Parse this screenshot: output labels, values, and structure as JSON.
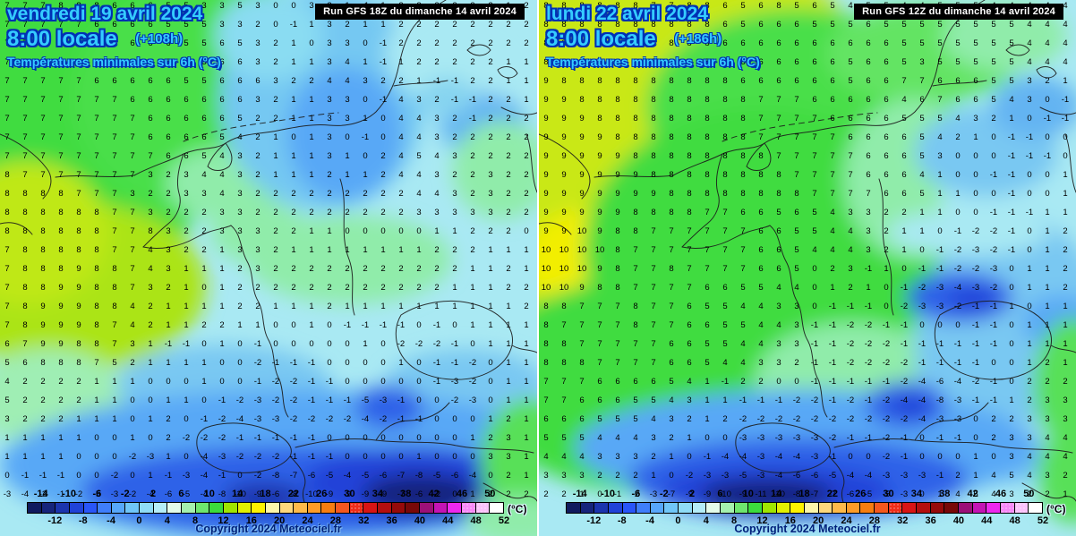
{
  "panels": [
    {
      "header": {
        "date": "vendredi 19 avril 2024",
        "time": "8:00 locale",
        "offset": "(+108h)",
        "subtitle": "Températures minimales sur 6h (°C)"
      },
      "run_label": "Run GFS 18Z du dimanche 14 avril 2024",
      "copyright": "Copyright 2024 Meteociel.fr",
      "grid_rows": [
        "7 7 7 8 8 8 6 6 6 5 5 3 3 5 3 0 0 3 2 1 -1 1 2 2 2 2 2 2 1 2",
        "7 7 7 7 7 6 6 6 6 5 5 5 3 3 2 0 -1 1 3 2 1 1 2 2 2 2 2 2 2 2",
        "7 7 7 7 7 6 6 6 6 6 5 5 6 5 3 2 1 0 3 3 0 -1 2 2 2 2 2 2 2 2",
        "7 7 7 7 7 7 6 6 6 6 5 5 6 6 3 2 1 1 3 4 1 -1 1 2 2 2 2 2 1 1",
        "7 7 7 7 7 6 6 6 6 6 5 5 6 6 6 3 2 2 4 4 3 2 2 1 -1 -1 2 2 1 1",
        "7 7 7 7 7 7 7 6 6 6 6 6 6 6 3 2 1 1 3 3 0 -1 4 3 2 -1 -1 2 2 1",
        "7 7 7 7 7 7 7 7 6 6 6 6 6 5 2 2 1 1 3 3 1 0 4 4 3 2 -1 2 2 2",
        "7 7 7 7 7 7 7 7 6 6 6 6 5 4 2 1 0 1 3 0 -1 0 4 4 3 2 2 2 2 2",
        "7 7 7 7 7 7 7 7 7 6 6 5 4 3 2 1 1 1 3 1 0 2 4 5 4 3 2 2 2 2",
        "8 7 7 7 7 7 7 7 3 2 3 4 4 3 2 1 1 1 2 1 1 2 4 4 3 2 2 3 2 2",
        "8 8 8 8 7 7 7 3 2 2 3 3 4 3 2 2 2 2 2 2 2 2 2 4 4 3 2 3 2 2",
        "8 8 8 8 8 8 7 7 3 2 2 2 3 3 2 2 2 2 2 2 2 2 2 3 3 3 3 3 2 2",
        "8 8 8 8 8 8 7 7 8 3 2 2 3 3 3 2 2 1 1 0 0 0 0 0 1 1 2 2 2 0",
        "7 8 8 8 8 8 7 7 4 3 2 2 1 3 3 2 1 1 1 1 1 1 1 1 2 2 2 1 1 1",
        "7 8 8 8 9 8 8 7 4 3 1 1 1 2 3 2 2 2 2 2 2 2 2 2 2 2 1 1 2 1",
        "7 8 8 9 9 8 8 7 3 2 1 0 1 2 2 2 2 2 2 2 2 2 2 2 2 1 1 1 2 2",
        "7 8 9 9 9 8 8 4 2 1 1 1 1 2 2 1 1 1 2 1 1 1 1 1 1 1 1 1 1 2",
        "7 8 9 9 9 8 7 4 2 1 1 2 2 1 1 0 0 1 0 -1 -1 -1 -1 0 -1 0 1 1 1 1",
        "6 7 9 9 8 8 7 3 1 -1 -1 0 1 0 -1 0 0 0 0 0 1 0 -2 -2 -2 -1 0 1 1 1",
        "5 6 8 8 8 7 5 2 1 1 1 1 0 0 -2 -1 -1 -1 0 0 0 0 1 0 -1 -1 -2 0 1 1",
        "4 2 2 2 2 1 1 1 0 0 0 1 0 0 -1 -2 -2 -1 -1 0 0 0 0 0 -1 -3 -2 0 1 1",
        "5 2 2 2 2 1 1 0 0 1 1 0 -1 -2 -3 -2 -2 -1 -1 -1 -5 -3 -1 0 0 -2 -3 0 1 1",
        "3 2 2 2 1 1 1 0 1 2 0 -1 -2 -4 -3 -3 -2 -2 -2 -2 -4 -2 -1 -1 0 0 0 1 2 1",
        "1 1 1 1 1 0 0 1 0 2 -2 -2 -2 -1 -1 -1 -1 -1 0 0 0 0 0 0 0 0 1 2 3 1",
        "1 1 1 1 0 0 0 -2 -3 1 0 -4 -3 -2 -2 -2 -1 -1 -1 0 0 0 0 1 0 0 0 3 3 1",
        "0 -1 -1 -1 0 0 -2 0 1 -1 -3 -4 -1 0 -2 -8 -7 -6 -5 -4 -5 -6 -7 -8 -5 -6 -4 0 2 1",
        "-3 -4 -2 -1 -2 -5 -3 -2 -4 -6 -5 -4 -8 -10 -9 -6 -8 -10 -9 -9 -9 -9 -7 -6 -2 0 1 2 2 2"
      ]
    },
    {
      "header": {
        "date": "lundi 22 avril 2024",
        "time": "8:00 locale",
        "offset": "(+186h)",
        "subtitle": "Températures minimales sur 6h (°C)"
      },
      "run_label": "Run GFS 12Z du dimanche 14 avril 2024",
      "copyright": "Copyright 2024 Meteociel.fr",
      "grid_rows": [
        "8 8 8 8 8 8 7 7 8 8 6 5 6 8 5 6 5 4 5 5 4 4 5 5 5 4 4 4 4 4",
        "8 8 8 8 8 8 8 8 8 8 6 5 6 6 6 5 5 5 6 5 5 5 5 5 5 5 5 4 4 4",
        "8 8 8 8 8 8 8 8 8 8 6 6 6 6 6 6 6 6 6 6 5 5 5 5 5 5 5 4 4 4",
        "8 8 8 8 8 8 8 8 8 8 8 6 6 6 6 6 6 5 6 6 5 3 5 5 5 5 5 4 4 4",
        "9 8 8 8 8 8 8 8 8 8 8 6 6 6 6 6 6 5 6 6 7 7 6 6 6 5 5 3 2 1",
        "9 9 8 8 8 8 8 8 8 8 8 8 7 7 7 6 6 6 6 6 4 6 7 6 6 5 4 3 0 -1",
        "9 9 9 8 8 8 8 8 8 8 8 8 7 7 7 7 6 6 6 6 5 5 5 4 3 2 1 0 -1 -1",
        "9 9 9 9 8 8 8 8 8 8 8 8 7 7 7 7 7 6 6 6 6 5 4 2 1 0 -1 -1 0 0",
        "9 9 9 9 9 8 8 8 8 8 8 8 8 7 7 7 7 7 6 6 6 5 3 0 0 0 -1 -1 -1 0",
        "9 9 9 9 9 9 8 8 8 8 8 8 8 8 7 7 7 7 6 6 6 4 1 0 0 -1 -1 0 0 1",
        "9 9 9 9 9 9 9 8 8 8 8 8 8 8 8 7 7 7 7 6 6 5 1 1 0 0 -1 0 0 1",
        "9 9 9 9 9 8 8 8 8 7 7 6 6 5 6 5 4 3 3 2 2 1 1 0 0 -1 -1 -1 1 1",
        "9 9 10 9 8 8 7 7 7 7 7 7 6 6 5 5 4 4 3 2 1 1 0 -1 -2 -2 -1 0 1 2",
        "10 10 10 10 8 7 7 7 7 7 7 7 6 6 5 4 4 4 3 2 1 0 -1 -2 -3 -2 -1 0 1 2",
        "10 10 10 9 8 7 7 8 7 7 7 7 6 6 5 0 2 3 -1 1 0 -1 -1 -2 -2 -3 0 1 1 2",
        "10 10 9 8 8 7 7 7 7 6 6 5 5 4 4 0 1 2 1 0 -1 -2 -3 -4 -3 -2 0 1 1 2",
        "8 8 7 7 7 8 7 7 6 5 5 4 4 3 3 0 -1 -1 -1 0 -2 -3 -3 -2 -1 -1 1 0 1 1",
        "8 7 7 7 7 8 7 7 6 6 5 5 4 4 3 -1 -1 -2 -2 -1 -1 0 0 0 -1 -1 0 1 1 1",
        "8 8 7 7 7 7 7 6 6 5 5 4 4 3 3 -1 -1 -2 -2 -2 -1 -1 -1 -1 -1 -1 0 1 1 1",
        "8 8 8 7 7 7 7 6 6 5 4 4 3 3 2 -1 -1 -2 -2 -2 -2 -1 -1 -1 -1 0 0 1 2 1",
        "7 7 7 6 6 6 6 5 4 1 -1 2 2 0 0 -1 -1 -1 -1 -1 -2 -4 -6 -4 -2 -1 0 2 2 2",
        "7 7 6 6 6 5 5 4 3 1 1 -1 -1 -1 -2 -2 -1 -2 -1 -2 -4 -4 -8 -3 -1 -1 1 2 3 3",
        "6 6 6 5 5 5 4 3 2 1 2 -2 -2 -2 -2 -2 -2 -2 -2 -2 -2 -4 -3 -3 0 2 2 3 3 3",
        "5 5 5 4 4 4 3 2 1 0 0 -3 -3 -3 -3 -3 -2 -1 -1 -2 -1 0 -1 -1 0 2 3 3 4 4",
        "4 4 4 3 3 3 2 1 0 -1 -4 -4 -3 -4 -4 -3 -1 0 0 -2 -1 0 0 0 1 0 3 4 4 4",
        "3 3 3 2 2 2 1 0 -2 -3 -3 -5 -3 -4 -6 -6 -5 -4 -4 -3 -3 -3 -1 2 1 4 5 4 3 2",
        "2 2 1 0 -1 -2 -3 -7 -9 -9 -10 -9 -11 -10 -8 -7 -7 -6 -5 -5 -3 0 1 4 5 4 3 2 2 1"
      ]
    }
  ],
  "colorbar": {
    "unit": "(°C)",
    "range": [
      -16,
      52
    ],
    "ticks_above": [
      -14,
      -10,
      -6,
      -2,
      2,
      6,
      10,
      14,
      18,
      22,
      26,
      30,
      34,
      38,
      42,
      46,
      50
    ],
    "ticks_below": [
      -12,
      -8,
      -4,
      0,
      4,
      8,
      12,
      16,
      20,
      24,
      28,
      32,
      36,
      40,
      44,
      48,
      52
    ],
    "colors": [
      "#101a5e",
      "#16247c",
      "#1b34ae",
      "#2042d8",
      "#2955f8",
      "#3f7efb",
      "#57a7fb",
      "#70c6f8",
      "#8fdcf6",
      "#b5edf8",
      "#e4fbea",
      "#a5f0ae",
      "#6ee66e",
      "#3cdc3c",
      "#a0e600",
      "#e2f000",
      "#fef200",
      "#fdf6aa",
      "#fdd87c",
      "#feba4a",
      "#fe9c28",
      "#f67d10",
      "#f5571e",
      "#f02c18",
      "#d81414",
      "#b40e0e",
      "#960a0a",
      "#780808",
      "#9c1078",
      "#c414b4",
      "#ee28ee",
      "#f788f7",
      "#fbc2fb",
      "#ffffff"
    ]
  }
}
